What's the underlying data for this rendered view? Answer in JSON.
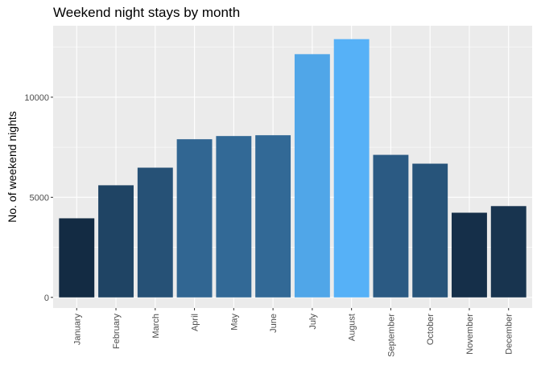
{
  "chart_data": {
    "type": "bar",
    "title": "Weekend night stays by month",
    "xlabel": "",
    "ylabel": "No. of weekend nights",
    "categories": [
      "January",
      "February",
      "March",
      "April",
      "May",
      "June",
      "July",
      "August",
      "September",
      "October",
      "November",
      "December"
    ],
    "values": [
      3950,
      5600,
      6480,
      7900,
      8060,
      8100,
      12150,
      12900,
      7120,
      6680,
      4230,
      4560
    ],
    "ylim": [
      -530,
      13570
    ],
    "yticks": [
      0,
      5000,
      10000
    ],
    "ytick_labels": [
      "0",
      "5000",
      "10000"
    ],
    "grid": true,
    "legend": "none",
    "colors": {
      "panel_background": "#EBEBEB",
      "gridline": "#FFFFFF",
      "fill_low": "#132B43",
      "fill_high": "#56B1F7"
    }
  }
}
